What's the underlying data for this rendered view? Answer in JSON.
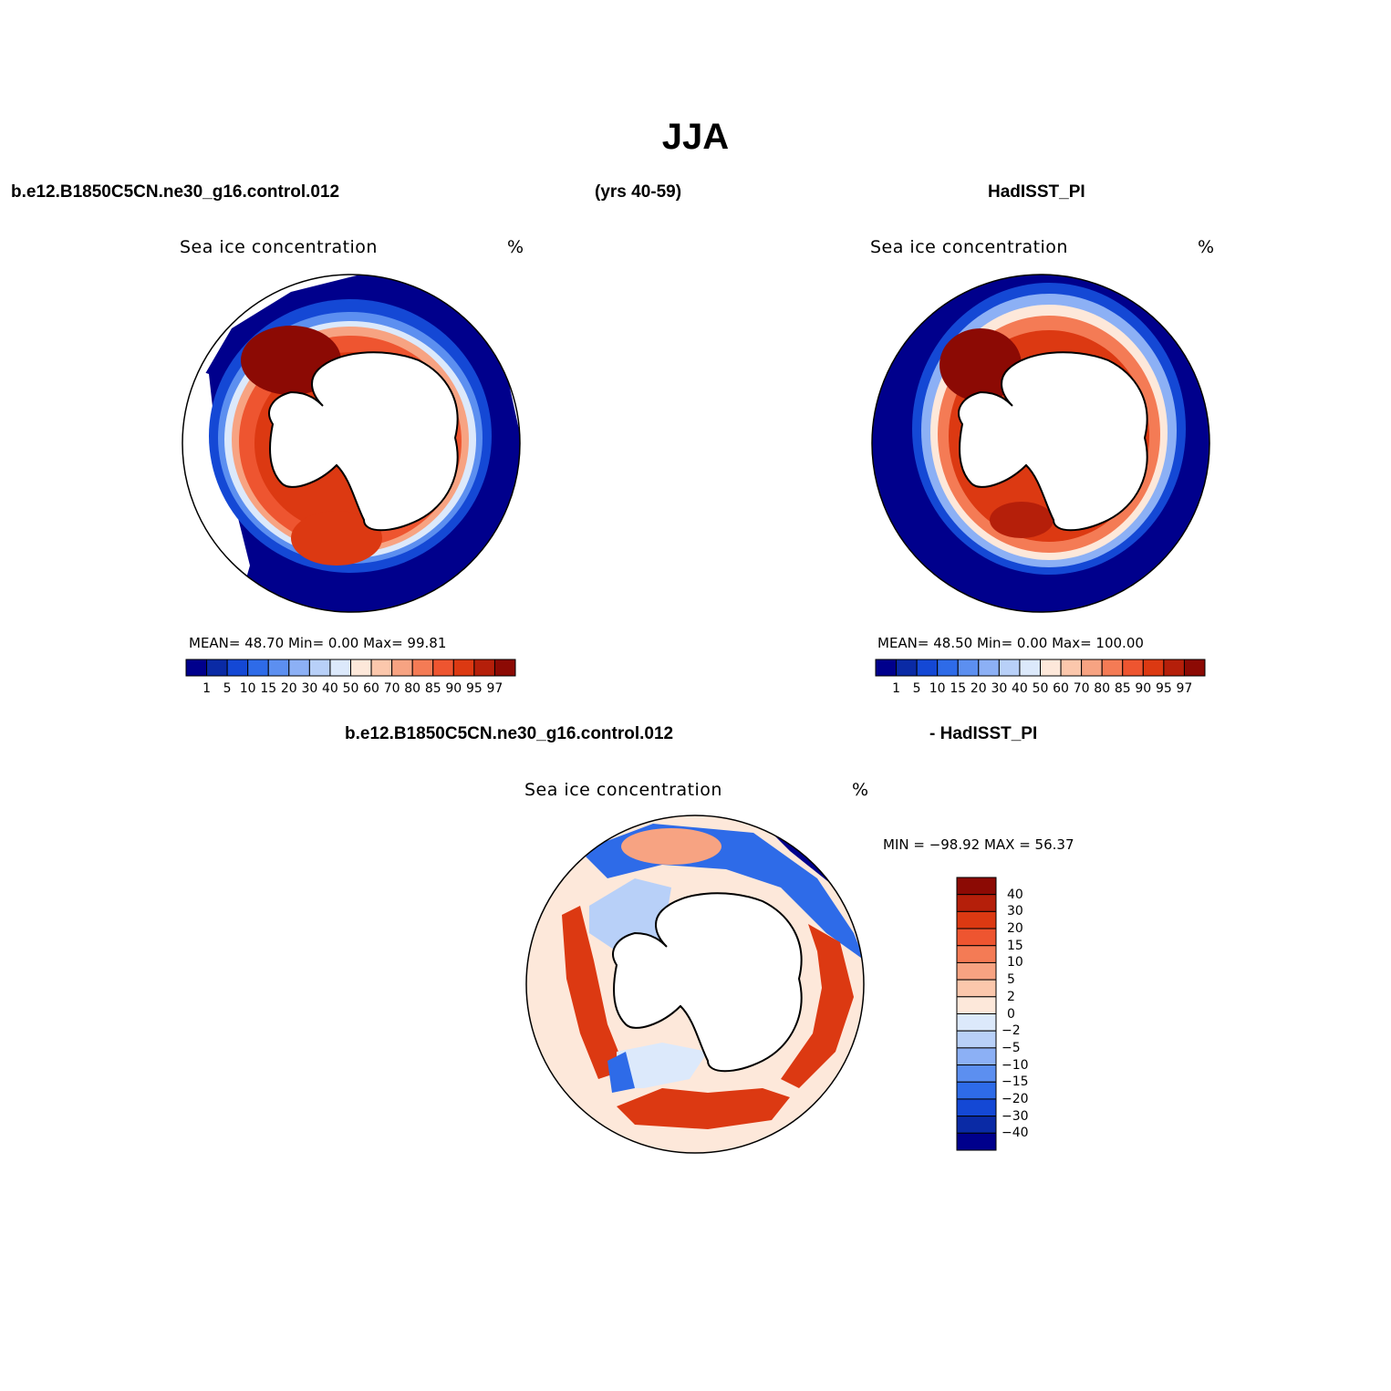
{
  "title": "JJA",
  "top_left": {
    "left_label": "b.e12.B1850C5CN.ne30_g16.control.012",
    "center_label": "(yrs 40-59)",
    "right_label": "HadISST_PI"
  },
  "bottom": {
    "left_label": "b.e12.B1850C5CN.ne30_g16.control.012",
    "right_label": "- HadISST_PI"
  },
  "panels": [
    {
      "variable": "Sea ice concentration",
      "units": "%",
      "stats": "MEAN=   48.70   Min=      0.00    Max=    99.81",
      "map": "model"
    },
    {
      "variable": "Sea ice concentration",
      "units": "%",
      "stats": "MEAN=   48.50   Min=      0.00    Max=  100.00",
      "map": "obs"
    }
  ],
  "diff_panel": {
    "variable": "Sea ice concentration",
    "units": "%",
    "stats": "MIN = −98.92  MAX =    56.37"
  },
  "colorbar_abs": {
    "ticks": [
      "1",
      "5",
      "10",
      "15",
      "20",
      "30",
      "40",
      "50",
      "60",
      "70",
      "80",
      "85",
      "90",
      "95",
      "97"
    ],
    "colors": [
      "#00008c",
      "#0a2aa5",
      "#1448d5",
      "#2e6be8",
      "#5c8ff0",
      "#8cb0f5",
      "#b8d0f8",
      "#dce9fb",
      "#fde8da",
      "#fbc7ac",
      "#f7a382",
      "#f47b55",
      "#ee5530",
      "#dc3912",
      "#b51f0a",
      "#8c0a04"
    ]
  },
  "colorbar_diff": {
    "ticks": [
      "40",
      "30",
      "20",
      "15",
      "10",
      "5",
      "2",
      "0",
      "−2",
      "−5",
      "−10",
      "−15",
      "−20",
      "−30",
      "−40"
    ],
    "colors": [
      "#8c0a04",
      "#b51f0a",
      "#dc3912",
      "#ee5530",
      "#f47b55",
      "#f7a382",
      "#fbc7ac",
      "#fde8da",
      "#dce9fb",
      "#b8d0f8",
      "#8cb0f5",
      "#5c8ff0",
      "#2e6be8",
      "#1448d5",
      "#0a2aa5",
      "#00008c"
    ]
  }
}
